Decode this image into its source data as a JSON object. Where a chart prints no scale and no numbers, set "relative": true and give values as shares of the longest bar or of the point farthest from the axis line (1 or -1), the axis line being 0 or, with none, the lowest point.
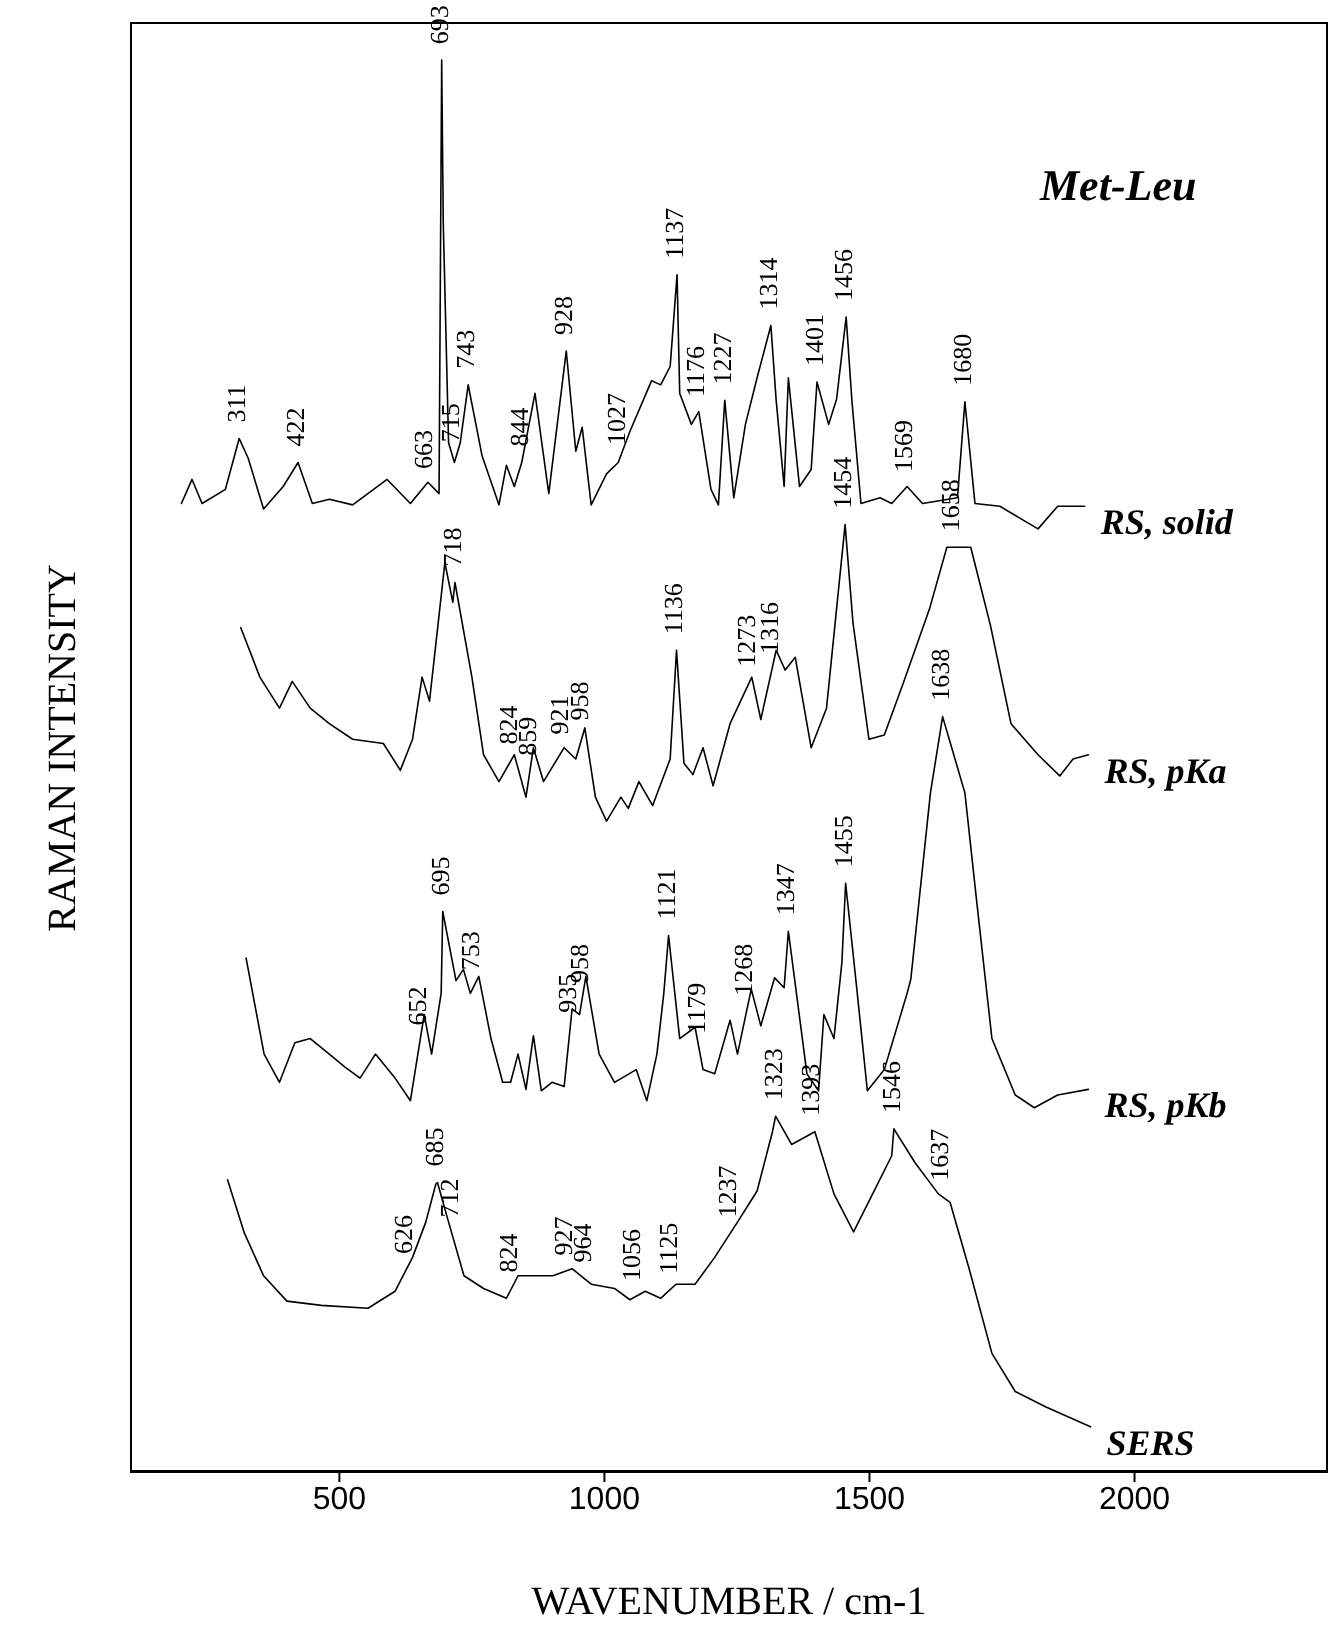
{
  "chart_data": {
    "type": "line",
    "title": "Met-Leu",
    "xlabel": "WAVENUMBER / cm-1",
    "ylabel": "RAMAN INTENSITY",
    "relative": true,
    "xlim": [
      105,
      2365
    ],
    "xticks": [
      500,
      1000,
      1500,
      2000
    ],
    "grid": false,
    "legend": false,
    "marker": "none",
    "line_style": "solid",
    "series": [
      {
        "name": "RS, solid",
        "color": "#000000",
        "x": [
          202,
          222,
          241,
          285,
          311,
          328,
          357,
          394,
          422,
          449,
          481,
          525,
          590,
          634,
          667,
          688,
          693,
          696,
          706,
          717,
          728,
          743,
          769,
          801,
          815,
          830,
          844,
          869,
          895,
          928,
          946,
          958,
          975,
          1004,
          1026,
          1048,
          1089,
          1106,
          1124,
          1137,
          1142,
          1164,
          1178,
          1201,
          1215,
          1227,
          1244,
          1266,
          1288,
          1314,
          1324,
          1339,
          1347,
          1368,
          1390,
          1401,
          1423,
          1438,
          1456,
          1467,
          1484,
          1520,
          1542,
          1571,
          1600,
          1666,
          1680,
          1699,
          1746,
          1818,
          1855,
          1906
        ],
        "values": [
          0.686,
          0.703,
          0.686,
          0.696,
          0.732,
          0.718,
          0.682,
          0.698,
          0.715,
          0.686,
          0.689,
          0.685,
          0.703,
          0.686,
          0.701,
          0.693,
          1.0,
          0.884,
          0.729,
          0.715,
          0.729,
          0.77,
          0.72,
          0.685,
          0.713,
          0.698,
          0.715,
          0.764,
          0.693,
          0.794,
          0.723,
          0.74,
          0.685,
          0.707,
          0.715,
          0.737,
          0.773,
          0.77,
          0.783,
          0.848,
          0.764,
          0.742,
          0.751,
          0.696,
          0.685,
          0.759,
          0.69,
          0.742,
          0.775,
          0.812,
          0.759,
          0.698,
          0.775,
          0.698,
          0.71,
          0.772,
          0.742,
          0.76,
          0.818,
          0.758,
          0.686,
          0.69,
          0.686,
          0.698,
          0.686,
          0.69,
          0.758,
          0.686,
          0.684,
          0.668,
          0.684,
          0.684
        ]
      },
      {
        "name": "RS, pKa",
        "color": "#000000",
        "x": [
          314,
          350,
          387,
          411,
          445,
          481,
          525,
          583,
          615,
          638,
          656,
          670,
          699,
          714,
          718,
          750,
          772,
          801,
          830,
          852,
          866,
          885,
          924,
          946,
          963,
          983,
          1004,
          1031,
          1045,
          1065,
          1091,
          1124,
          1136,
          1150,
          1167,
          1186,
          1205,
          1237,
          1278,
          1295,
          1324,
          1341,
          1360,
          1390,
          1419,
          1454,
          1469,
          1499,
          1528,
          1564,
          1613,
          1646,
          1691,
          1728,
          1767,
          1818,
          1859,
          1884,
          1913
        ],
        "values": [
          0.598,
          0.563,
          0.541,
          0.56,
          0.541,
          0.53,
          0.519,
          0.516,
          0.497,
          0.519,
          0.563,
          0.546,
          0.644,
          0.616,
          0.63,
          0.563,
          0.508,
          0.489,
          0.508,
          0.478,
          0.513,
          0.489,
          0.513,
          0.505,
          0.527,
          0.478,
          0.461,
          0.478,
          0.47,
          0.489,
          0.472,
          0.505,
          0.582,
          0.502,
          0.494,
          0.513,
          0.486,
          0.53,
          0.563,
          0.533,
          0.582,
          0.568,
          0.577,
          0.513,
          0.541,
          0.671,
          0.601,
          0.519,
          0.522,
          0.559,
          0.611,
          0.655,
          0.655,
          0.6,
          0.53,
          0.508,
          0.493,
          0.505,
          0.508
        ]
      },
      {
        "name": "RS, pKb",
        "color": "#000000",
        "x": [
          324,
          358,
          387,
          416,
          445,
          481,
          510,
          539,
          568,
          605,
          634,
          660,
          674,
          692,
          695,
          720,
          734,
          747,
          763,
          786,
          808,
          823,
          837,
          852,
          866,
          881,
          901,
          924,
          939,
          953,
          965,
          990,
          1019,
          1060,
          1080,
          1099,
          1112,
          1121,
          1142,
          1171,
          1186,
          1208,
          1237,
          1251,
          1277,
          1295,
          1321,
          1339,
          1347,
          1382,
          1404,
          1414,
          1433,
          1448,
          1455,
          1477,
          1496,
          1528,
          1571,
          1578,
          1615,
          1638,
          1680,
          1702,
          1731,
          1775,
          1811,
          1855,
          1913
        ],
        "values": [
          0.364,
          0.296,
          0.276,
          0.304,
          0.307,
          0.296,
          0.287,
          0.279,
          0.296,
          0.279,
          0.263,
          0.324,
          0.296,
          0.339,
          0.397,
          0.348,
          0.356,
          0.339,
          0.351,
          0.307,
          0.276,
          0.276,
          0.296,
          0.271,
          0.309,
          0.27,
          0.276,
          0.273,
          0.328,
          0.324,
          0.351,
          0.296,
          0.276,
          0.285,
          0.263,
          0.296,
          0.339,
          0.38,
          0.307,
          0.315,
          0.285,
          0.282,
          0.32,
          0.296,
          0.342,
          0.316,
          0.35,
          0.343,
          0.383,
          0.282,
          0.27,
          0.324,
          0.307,
          0.361,
          0.417,
          0.339,
          0.27,
          0.285,
          0.339,
          0.349,
          0.481,
          0.535,
          0.481,
          0.405,
          0.307,
          0.267,
          0.258,
          0.267,
          0.271
        ]
      },
      {
        "name": "SERS",
        "color": "#000000",
        "x": [
          289,
          321,
          357,
          401,
          466,
          554,
          605,
          638,
          663,
          682,
          685,
          706,
          735,
          772,
          815,
          837,
          903,
          939,
          975,
          1019,
          1048,
          1077,
          1106,
          1135,
          1171,
          1208,
          1251,
          1288,
          1317,
          1323,
          1353,
          1397,
          1433,
          1470,
          1506,
          1542,
          1546,
          1586,
          1630,
          1652,
          1688,
          1731,
          1775,
          1833,
          1917
        ],
        "values": [
          0.207,
          0.169,
          0.139,
          0.121,
          0.118,
          0.116,
          0.128,
          0.152,
          0.177,
          0.204,
          0.205,
          0.177,
          0.139,
          0.13,
          0.123,
          0.139,
          0.139,
          0.144,
          0.133,
          0.13,
          0.122,
          0.128,
          0.123,
          0.133,
          0.133,
          0.152,
          0.177,
          0.199,
          0.241,
          0.252,
          0.232,
          0.241,
          0.197,
          0.17,
          0.197,
          0.224,
          0.243,
          0.219,
          0.197,
          0.191,
          0.144,
          0.084,
          0.057,
          0.046,
          0.032
        ]
      }
    ],
    "annotations": [
      {
        "text": "311",
        "x": 311,
        "y": 0.732
      },
      {
        "text": "422",
        "x": 422,
        "y": 0.715
      },
      {
        "text": "663",
        "x": 663,
        "y": 0.699
      },
      {
        "text": "693",
        "x": 693,
        "y": 1.0
      },
      {
        "text": "715",
        "x": 715,
        "y": 0.718
      },
      {
        "text": "743",
        "x": 743,
        "y": 0.77
      },
      {
        "text": "844",
        "x": 844,
        "y": 0.715
      },
      {
        "text": "928",
        "x": 928,
        "y": 0.794
      },
      {
        "text": "1027",
        "x": 1027,
        "y": 0.716
      },
      {
        "text": "1137",
        "x": 1137,
        "y": 0.848
      },
      {
        "text": "1176",
        "x": 1176,
        "y": 0.75
      },
      {
        "text": "1227",
        "x": 1227,
        "y": 0.759
      },
      {
        "text": "1314",
        "x": 1314,
        "y": 0.812
      },
      {
        "text": "1401",
        "x": 1401,
        "y": 0.772
      },
      {
        "text": "1456",
        "x": 1456,
        "y": 0.818
      },
      {
        "text": "1569",
        "x": 1569,
        "y": 0.697
      },
      {
        "text": "1680",
        "x": 1680,
        "y": 0.758
      },
      {
        "text": "1454",
        "x": 1454,
        "y": 0.671
      },
      {
        "text": "1658",
        "x": 1658,
        "y": 0.655
      },
      {
        "text": "718",
        "x": 718,
        "y": 0.63
      },
      {
        "text": "824",
        "x": 824,
        "y": 0.504
      },
      {
        "text": "859",
        "x": 859,
        "y": 0.496
      },
      {
        "text": "921",
        "x": 921,
        "y": 0.511
      },
      {
        "text": "958",
        "x": 958,
        "y": 0.521
      },
      {
        "text": "1136",
        "x": 1136,
        "y": 0.582
      },
      {
        "text": "1273",
        "x": 1273,
        "y": 0.559
      },
      {
        "text": "1316",
        "x": 1316,
        "y": 0.568
      },
      {
        "text": "1638",
        "x": 1638,
        "y": 0.535
      },
      {
        "text": "652",
        "x": 652,
        "y": 0.305
      },
      {
        "text": "695",
        "x": 695,
        "y": 0.397
      },
      {
        "text": "753",
        "x": 753,
        "y": 0.344
      },
      {
        "text": "935",
        "x": 935,
        "y": 0.314
      },
      {
        "text": "958",
        "x": 958,
        "y": 0.335
      },
      {
        "text": "1121",
        "x": 1121,
        "y": 0.38
      },
      {
        "text": "1179",
        "x": 1179,
        "y": 0.299
      },
      {
        "text": "1268",
        "x": 1268,
        "y": 0.326
      },
      {
        "text": "1347",
        "x": 1347,
        "y": 0.383
      },
      {
        "text": "1455",
        "x": 1455,
        "y": 0.417
      },
      {
        "text": "1323",
        "x": 1323,
        "y": 0.252
      },
      {
        "text": "1393",
        "x": 1393,
        "y": 0.241
      },
      {
        "text": "1546",
        "x": 1546,
        "y": 0.243
      },
      {
        "text": "1637",
        "x": 1637,
        "y": 0.195
      },
      {
        "text": "626",
        "x": 626,
        "y": 0.143
      },
      {
        "text": "685",
        "x": 685,
        "y": 0.205
      },
      {
        "text": "712",
        "x": 712,
        "y": 0.169
      },
      {
        "text": "824",
        "x": 824,
        "y": 0.13
      },
      {
        "text": "927",
        "x": 927,
        "y": 0.142
      },
      {
        "text": "964",
        "x": 964,
        "y": 0.137
      },
      {
        "text": "1056",
        "x": 1056,
        "y": 0.124
      },
      {
        "text": "1125",
        "x": 1125,
        "y": 0.129
      },
      {
        "text": "1237",
        "x": 1237,
        "y": 0.169
      }
    ]
  }
}
